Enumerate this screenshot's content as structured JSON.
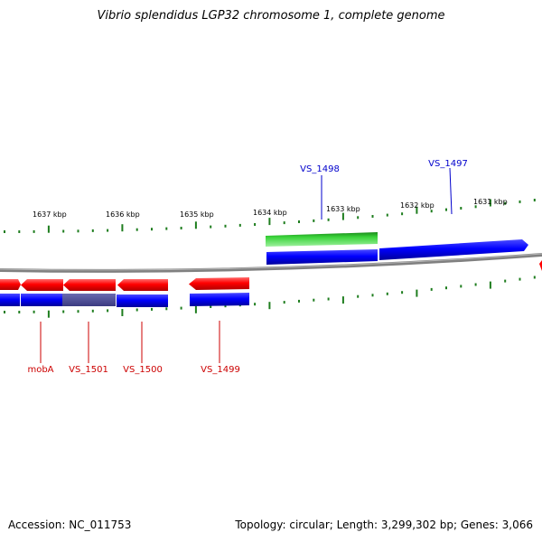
{
  "title": "Vibrio splendidus LGP32 chromosome 1, complete genome",
  "footer": {
    "accession": "Accession: NC_011753",
    "summary": "Topology: circular; Length: 3,299,302 bp; Genes: 3,066"
  },
  "colors": {
    "backbone": "#808080",
    "tick": "#1e7d1e",
    "forward_cds": "#0000ff",
    "forward_gene": "#2fcf2f",
    "reverse_cds": "#ff0000",
    "reverse_gene": "#ff0000",
    "overlap_cds": "#4a4a9a",
    "forward_label": "#0000cc",
    "reverse_label": "#cc0000"
  },
  "scale": {
    "labels": [
      "1637 kbp",
      "1636 kbp",
      "1635 kbp",
      "1634 kbp",
      "1633 kbp",
      "1632 kbp",
      "1631 kbp"
    ]
  },
  "forward_labels": [
    "VS_1498",
    "VS_1497"
  ],
  "reverse_labels": [
    "mobA",
    "VS_1501",
    "VS_1500",
    "VS_1499"
  ]
}
